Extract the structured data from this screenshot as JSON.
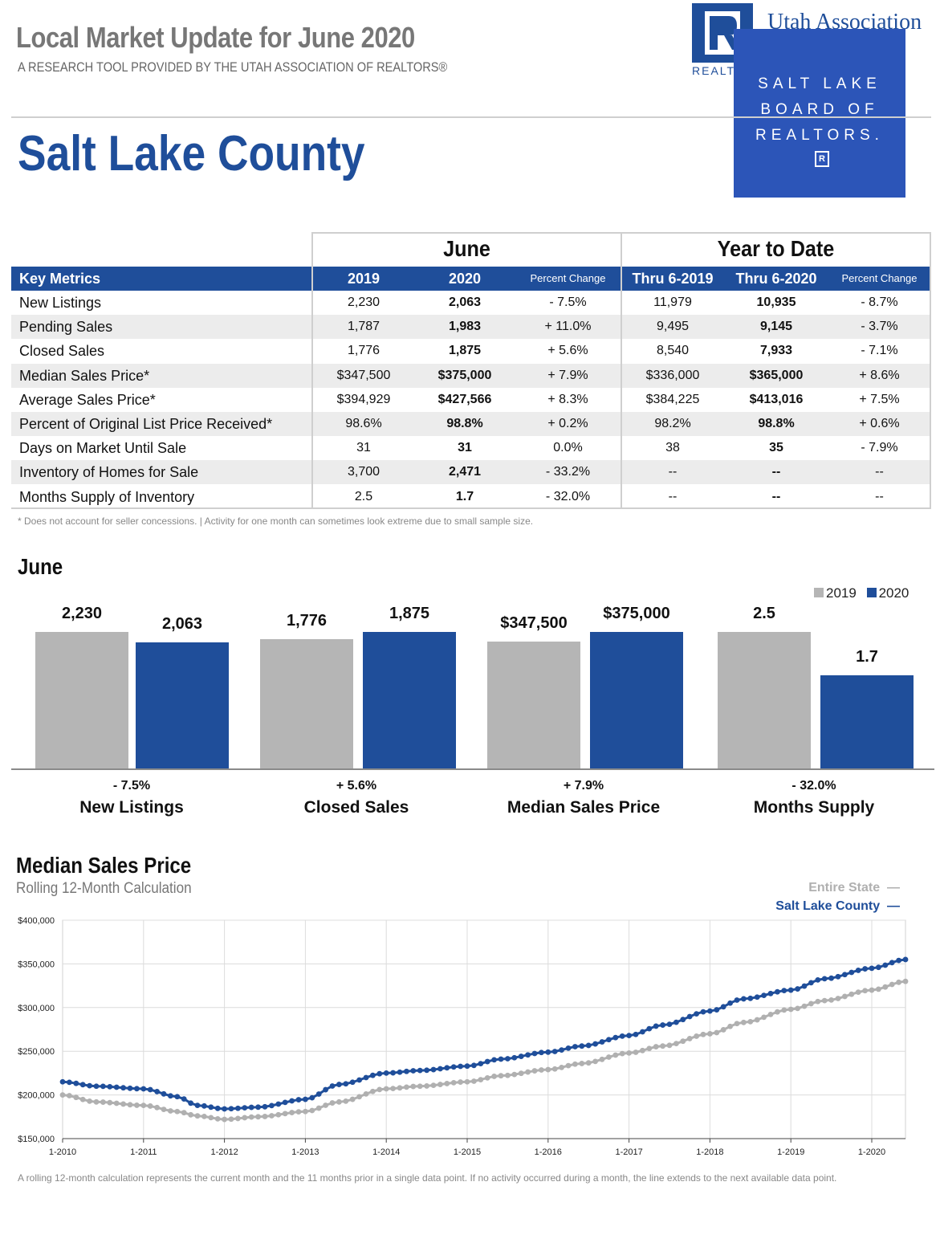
{
  "header": {
    "title": "Local Market Update for June 2020",
    "subtitle": "A RESEARCH TOOL PROVIDED BY THE UTAH ASSOCIATION OF REALTORS®",
    "county": "Salt Lake County"
  },
  "logos": {
    "uar_text": "Utah Association",
    "uar_realtor": "REALTORS",
    "slbr_lines": [
      "SALT LAKE",
      "BOARD OF",
      "REALTORS."
    ],
    "slbr_mark": "R"
  },
  "colors": {
    "blue": "#1f4e9a",
    "gray": "#b5b5b5",
    "state_line": "#b0b0b0",
    "county_line": "#1f4e9a"
  },
  "table": {
    "group_june": "June",
    "group_ytd": "Year to Date",
    "headers": [
      "Key Metrics",
      "2019",
      "2020",
      "Percent Change",
      "Thru 6-2019",
      "Thru 6-2020",
      "Percent Change"
    ],
    "rows": [
      [
        "New Listings",
        "2,230",
        "2,063",
        "- 7.5%",
        "11,979",
        "10,935",
        "- 8.7%"
      ],
      [
        "Pending Sales",
        "1,787",
        "1,983",
        "+ 11.0%",
        "9,495",
        "9,145",
        "- 3.7%"
      ],
      [
        "Closed Sales",
        "1,776",
        "1,875",
        "+ 5.6%",
        "8,540",
        "7,933",
        "- 7.1%"
      ],
      [
        "Median Sales Price*",
        "$347,500",
        "$375,000",
        "+ 7.9%",
        "$336,000",
        "$365,000",
        "+ 8.6%"
      ],
      [
        "Average Sales Price*",
        "$394,929",
        "$427,566",
        "+ 8.3%",
        "$384,225",
        "$413,016",
        "+ 7.5%"
      ],
      [
        "Percent of Original List Price Received*",
        "98.6%",
        "98.8%",
        "+ 0.2%",
        "98.2%",
        "98.8%",
        "+ 0.6%"
      ],
      [
        "Days on Market Until Sale",
        "31",
        "31",
        "0.0%",
        "38",
        "35",
        "- 7.9%"
      ],
      [
        "Inventory of Homes for Sale",
        "3,700",
        "2,471",
        "- 33.2%",
        "--",
        "--",
        "--"
      ],
      [
        "Months Supply of Inventory",
        "2.5",
        "1.7",
        "- 32.0%",
        "--",
        "--",
        "--"
      ]
    ],
    "footnote": "* Does not account for seller concessions.  |  Activity for one month can sometimes look extreme due to small sample size."
  },
  "june_section": {
    "title": "June"
  },
  "chart_data": [
    {
      "type": "bar",
      "legend": [
        "2019",
        "2020"
      ],
      "legend_placement": "top-right",
      "groups": [
        {
          "name": "New Listings",
          "change": "- 7.5%",
          "values": [
            2230,
            2063
          ],
          "labels": [
            "2,230",
            "2,063"
          ]
        },
        {
          "name": "Closed Sales",
          "change": "+ 5.6%",
          "values": [
            1776,
            1875
          ],
          "labels": [
            "1,776",
            "1,875"
          ]
        },
        {
          "name": "Median Sales Price",
          "change": "+ 7.9%",
          "values": [
            347500,
            375000
          ],
          "labels": [
            "$347,500",
            "$375,000"
          ]
        },
        {
          "name": "Months Supply",
          "change": "- 32.0%",
          "values": [
            2.5,
            1.7
          ],
          "labels": [
            "2.5",
            "1.7"
          ]
        }
      ]
    },
    {
      "type": "line",
      "title": "Median Sales Price",
      "subtitle": "Rolling 12-Month Calculation",
      "x_ticks": [
        "1-2010",
        "1-2011",
        "1-2012",
        "1-2013",
        "1-2014",
        "1-2015",
        "1-2016",
        "1-2017",
        "1-2018",
        "1-2019",
        "1-2020"
      ],
      "y_ticks": [
        "$150,000",
        "$200,000",
        "$250,000",
        "$300,000",
        "$350,000",
        "$400,000"
      ],
      "ylim": [
        150000,
        400000
      ],
      "grid": true,
      "legend_placement": "top-right",
      "series": [
        {
          "name": "Entire State",
          "knots": [
            [
              "2010-01",
              200000
            ],
            [
              "2010-06",
              192000
            ],
            [
              "2011-01",
              188000
            ],
            [
              "2011-06",
              181000
            ],
            [
              "2011-09",
              176000
            ],
            [
              "2012-01",
              172000
            ],
            [
              "2012-06",
              175000
            ],
            [
              "2013-01",
              181000
            ],
            [
              "2013-06",
              192000
            ],
            [
              "2014-01",
              207000
            ],
            [
              "2014-06",
              210000
            ],
            [
              "2015-01",
              215000
            ],
            [
              "2015-06",
              222000
            ],
            [
              "2016-01",
              229000
            ],
            [
              "2016-06",
              236000
            ],
            [
              "2017-01",
              248000
            ],
            [
              "2017-06",
              256000
            ],
            [
              "2018-01",
              270000
            ],
            [
              "2018-06",
              283000
            ],
            [
              "2019-01",
              298000
            ],
            [
              "2019-06",
              308000
            ],
            [
              "2020-01",
              320000
            ],
            [
              "2020-06",
              330000
            ]
          ]
        },
        {
          "name": "Salt Lake County",
          "knots": [
            [
              "2010-01",
              215000
            ],
            [
              "2010-06",
              210000
            ],
            [
              "2011-01",
              207000
            ],
            [
              "2011-06",
              198000
            ],
            [
              "2011-09",
              188000
            ],
            [
              "2012-01",
              184000
            ],
            [
              "2012-06",
              186000
            ],
            [
              "2013-01",
              195000
            ],
            [
              "2013-06",
              212000
            ],
            [
              "2014-01",
              225000
            ],
            [
              "2014-06",
              228000
            ],
            [
              "2015-01",
              233000
            ],
            [
              "2015-06",
              241000
            ],
            [
              "2016-01",
              249000
            ],
            [
              "2016-06",
              256000
            ],
            [
              "2017-01",
              268000
            ],
            [
              "2017-06",
              280000
            ],
            [
              "2018-01",
              296000
            ],
            [
              "2018-06",
              310000
            ],
            [
              "2019-01",
              320000
            ],
            [
              "2019-06",
              333000
            ],
            [
              "2020-01",
              345000
            ],
            [
              "2020-06",
              355000
            ]
          ]
        }
      ],
      "note": "A rolling 12-month calculation represents the current month and the 11 months prior in a single data point. If no activity occurred during a month, the line extends to the next available data point."
    }
  ]
}
